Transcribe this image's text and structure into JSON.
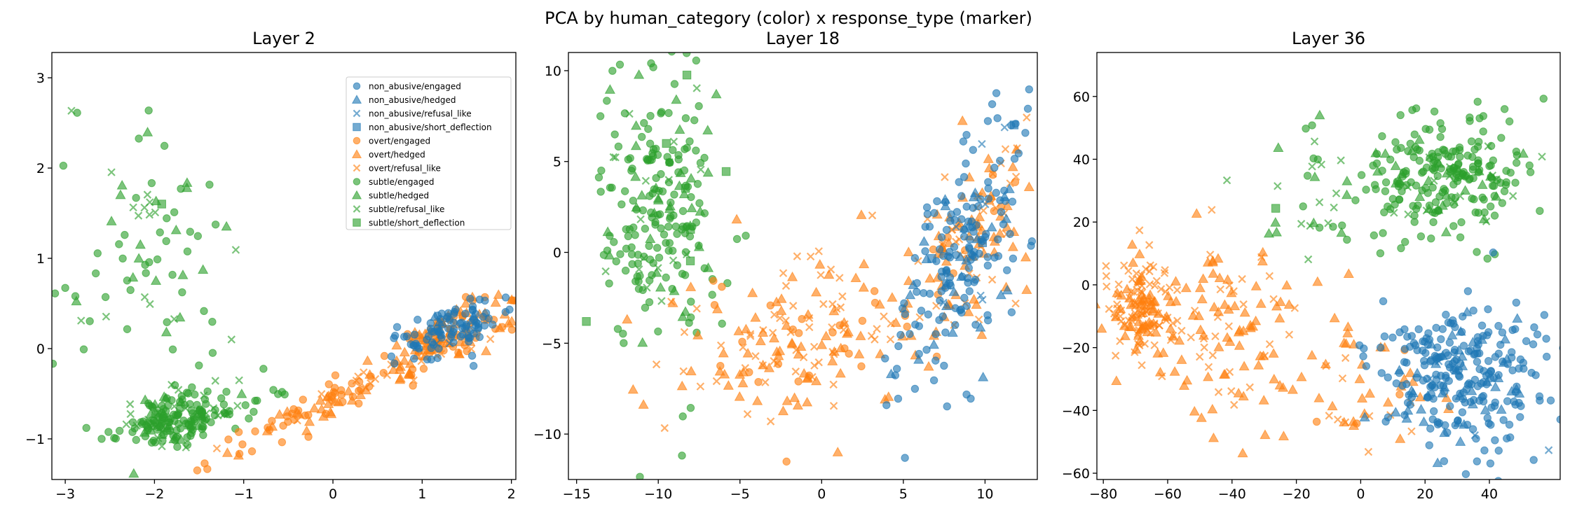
{
  "figure": {
    "suptitle": "PCA by human_category (color) x response_type (marker)"
  },
  "colors": {
    "non_abusive": "#1f77b4",
    "overt": "#ff7f0e",
    "subtle": "#2ca02c"
  },
  "legend": [
    {
      "label": "non_abusive/engaged",
      "category": "non_abusive",
      "marker": "circle"
    },
    {
      "label": "non_abusive/hedged",
      "category": "non_abusive",
      "marker": "triangle"
    },
    {
      "label": "non_abusive/refusal_like",
      "category": "non_abusive",
      "marker": "x"
    },
    {
      "label": "non_abusive/short_deflection",
      "category": "non_abusive",
      "marker": "square"
    },
    {
      "label": "overt/engaged",
      "category": "overt",
      "marker": "circle"
    },
    {
      "label": "overt/hedged",
      "category": "overt",
      "marker": "triangle"
    },
    {
      "label": "overt/refusal_like",
      "category": "overt",
      "marker": "x"
    },
    {
      "label": "subtle/engaged",
      "category": "subtle",
      "marker": "circle"
    },
    {
      "label": "subtle/hedged",
      "category": "subtle",
      "marker": "triangle"
    },
    {
      "label": "subtle/refusal_like",
      "category": "subtle",
      "marker": "x"
    },
    {
      "label": "subtle/short_deflection",
      "category": "subtle",
      "marker": "square"
    }
  ],
  "chart_data": [
    {
      "type": "scatter",
      "title": "Layer 2",
      "xlim": [
        -3.15,
        2.05
      ],
      "ylim": [
        -1.45,
        3.28
      ],
      "xticks": [
        -3,
        -2,
        -1,
        0,
        1,
        2
      ],
      "yticks": [
        -1,
        0,
        1,
        2,
        3
      ],
      "legend_position": "upper right",
      "clusters": [
        {
          "category": "subtle",
          "cx": -1.8,
          "cy": -0.8,
          "sx": 0.3,
          "sy": 0.15,
          "n": 170,
          "rot": 0.3,
          "markers": [
            0.72,
            0.12,
            0.14,
            0.02
          ]
        },
        {
          "category": "subtle",
          "cx": -2.1,
          "cy": 1.0,
          "sx": 0.45,
          "sy": 0.75,
          "n": 80,
          "rot": 0.0,
          "markers": [
            0.6,
            0.2,
            0.17,
            0.03
          ]
        },
        {
          "category": "subtle",
          "cx": -1.0,
          "cy": -0.6,
          "sx": 0.35,
          "sy": 0.15,
          "n": 20,
          "rot": 0.2,
          "markers": [
            0.8,
            0.1,
            0.1,
            0.0
          ]
        },
        {
          "category": "overt",
          "cx": 0.3,
          "cy": -0.45,
          "sx": 0.9,
          "sy": 0.1,
          "n": 130,
          "rot": 0.44,
          "markers": [
            0.5,
            0.35,
            0.15,
            0.0
          ]
        },
        {
          "category": "overt",
          "cx": 1.3,
          "cy": 0.2,
          "sx": 0.4,
          "sy": 0.12,
          "n": 90,
          "rot": 0.44,
          "markers": [
            0.45,
            0.45,
            0.1,
            0.0
          ]
        },
        {
          "category": "non_abusive",
          "cx": 1.3,
          "cy": 0.2,
          "sx": 0.35,
          "sy": 0.14,
          "n": 100,
          "rot": 0.42,
          "markers": [
            0.85,
            0.12,
            0.03,
            0.0
          ]
        }
      ]
    },
    {
      "type": "scatter",
      "title": "Layer 18",
      "xlim": [
        -15.5,
        13.2
      ],
      "ylim": [
        -12.5,
        11.0
      ],
      "xticks": [
        -15,
        -10,
        -5,
        0,
        5,
        10
      ],
      "yticks": [
        -10,
        -5,
        0,
        5,
        10
      ],
      "clusters": [
        {
          "category": "subtle",
          "cx": -10.0,
          "cy": 2.5,
          "sx": 1.8,
          "sy": 3.8,
          "n": 230,
          "rot": 0.0,
          "markers": [
            0.75,
            0.14,
            0.09,
            0.02
          ]
        },
        {
          "category": "overt",
          "cx": -3.0,
          "cy": -5.0,
          "sx": 3.2,
          "sy": 2.2,
          "n": 120,
          "rot": 0.0,
          "markers": [
            0.15,
            0.5,
            0.35,
            0.0
          ]
        },
        {
          "category": "overt",
          "cx": 2.0,
          "cy": -3.0,
          "sx": 2.5,
          "sy": 2.5,
          "n": 50,
          "rot": 0.0,
          "markers": [
            0.15,
            0.45,
            0.4,
            0.0
          ]
        },
        {
          "category": "overt",
          "cx": 9.0,
          "cy": 0.5,
          "sx": 1.3,
          "sy": 3.0,
          "n": 110,
          "rot": -0.35,
          "markers": [
            0.1,
            0.6,
            0.3,
            0.0
          ]
        },
        {
          "category": "non_abusive",
          "cx": 8.5,
          "cy": -0.5,
          "sx": 1.6,
          "sy": 4.0,
          "n": 190,
          "rot": -0.35,
          "markers": [
            0.82,
            0.14,
            0.03,
            0.01
          ]
        }
      ]
    },
    {
      "type": "scatter",
      "title": "Layer 36",
      "xlim": [
        -82,
        62
      ],
      "ylim": [
        -62,
        74
      ],
      "xticks": [
        -80,
        -60,
        -40,
        -20,
        0,
        20,
        40
      ],
      "yticks": [
        -60,
        -40,
        -20,
        0,
        20,
        40,
        60
      ],
      "clusters": [
        {
          "category": "subtle",
          "cx": 28.0,
          "cy": 36.0,
          "sx": 12.0,
          "sy": 10.0,
          "n": 230,
          "rot": 0.0,
          "markers": [
            0.82,
            0.1,
            0.08,
            0.0
          ]
        },
        {
          "category": "subtle",
          "cx": -10.0,
          "cy": 30.0,
          "sx": 12.0,
          "sy": 12.0,
          "n": 40,
          "rot": 0.0,
          "markers": [
            0.3,
            0.35,
            0.33,
            0.02
          ]
        },
        {
          "category": "overt",
          "cx": -68.0,
          "cy": -8.0,
          "sx": 5.0,
          "sy": 8.0,
          "n": 140,
          "rot": 0.0,
          "markers": [
            0.0,
            0.45,
            0.55,
            0.0
          ]
        },
        {
          "category": "overt",
          "cx": -42.0,
          "cy": -15.0,
          "sx": 14.0,
          "sy": 15.0,
          "n": 110,
          "rot": 0.0,
          "markers": [
            0.0,
            0.6,
            0.4,
            0.0
          ]
        },
        {
          "category": "overt",
          "cx": 0.0,
          "cy": -30.0,
          "sx": 14.0,
          "sy": 10.0,
          "n": 50,
          "rot": 0.0,
          "markers": [
            0.15,
            0.6,
            0.25,
            0.0
          ]
        },
        {
          "category": "non_abusive",
          "cx": 32.0,
          "cy": -30.0,
          "sx": 14.0,
          "sy": 12.0,
          "n": 280,
          "rot": 0.0,
          "markers": [
            0.85,
            0.12,
            0.03,
            0.0
          ]
        }
      ]
    }
  ]
}
